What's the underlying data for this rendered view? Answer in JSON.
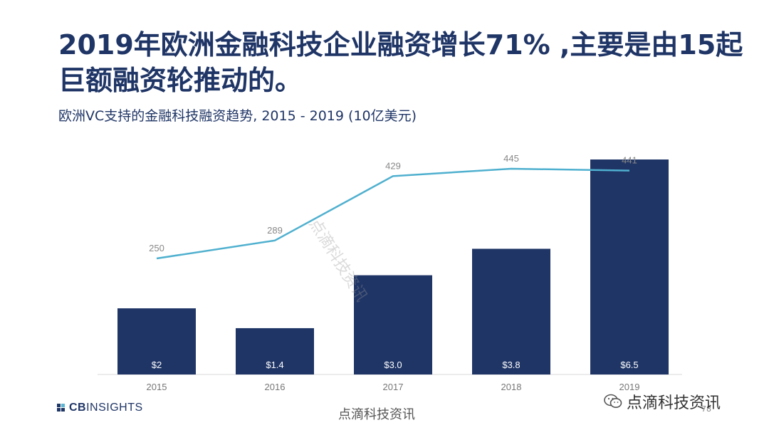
{
  "header": {
    "title": "2019年欧洲金融科技企业融资增长71% ,主要是由15起巨额融资轮推动的。",
    "subtitle": "欧洲VC支持的金融科技融资趋势, 2015 - 2019 (10亿美元)"
  },
  "chart_data": {
    "type": "bar",
    "categories": [
      "2015",
      "2016",
      "2017",
      "2018",
      "2019"
    ],
    "series": [
      {
        "type": "bar",
        "values": [
          2.0,
          1.4,
          3.0,
          3.8,
          6.5
        ],
        "labels": [
          "$2",
          "$1.4",
          "$3.0",
          "$3.8",
          "$6.5"
        ],
        "color": "#1f3566"
      },
      {
        "type": "line",
        "values": [
          250,
          289,
          429,
          445,
          441
        ],
        "labels": [
          "250",
          "289",
          "429",
          "445",
          "441"
        ],
        "color": "#4fb0cf"
      }
    ],
    "title": "",
    "grid": false,
    "legend": false
  },
  "footer": {
    "logo_cb": "CB",
    "logo_insights": "INSIGHTS",
    "watermark_bottom": "点滴科技资讯",
    "watermark_diagonal": "点滴科技资讯",
    "watermark_brand": "点滴科技资讯",
    "page_number": "78"
  }
}
